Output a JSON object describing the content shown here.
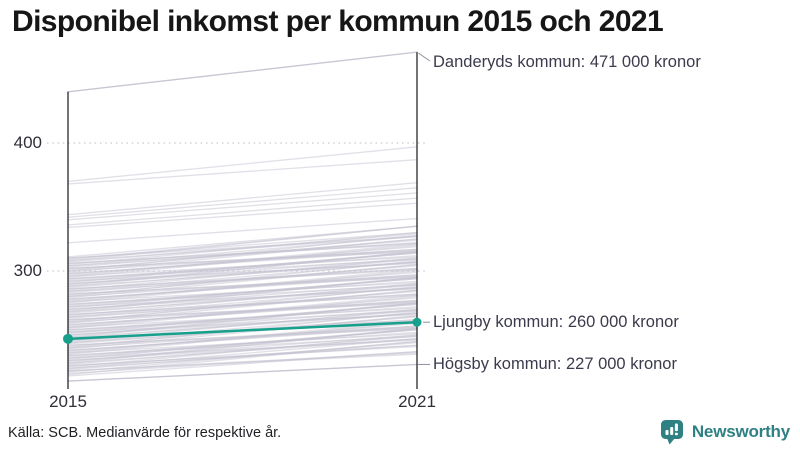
{
  "header": {
    "title": "Disponibel inkomst per kommun 2015 och 2021"
  },
  "footer": {
    "source_note": "Källa: SCB. Medianvärde för respektive år.",
    "brand": "Newsworthy"
  },
  "colors": {
    "accent_teal": "#17a08c",
    "line_gray": "#c5c3d1",
    "logo_teal": "#2e8083",
    "annotation_text": "#3b3b4d"
  },
  "chart_data": {
    "type": "line",
    "subtype": "slope-chart",
    "title": "Disponibel inkomst per kommun 2015 och 2021",
    "x_categories": [
      "2015",
      "2021"
    ],
    "y_ticks": [
      {
        "value": 400,
        "label": "400"
      },
      {
        "value": 300,
        "label": "300"
      }
    ],
    "ylim": [
      210,
      480
    ],
    "grid": "dotted horizontal at ticks",
    "legend": "none",
    "annotated": [
      {
        "name": "Danderyds kommun",
        "label": "Danderyds kommun: 471 000 kronor",
        "values": [
          440,
          471
        ],
        "highlight": false
      },
      {
        "name": "Ljungby kommun",
        "label": "Ljungby kommun: 260 000 kronor",
        "values": [
          247,
          260
        ],
        "highlight": true
      },
      {
        "name": "Högsby kommun",
        "label": "Högsby kommun: 227 000 kronor",
        "values": [
          214,
          227
        ],
        "highlight": false
      }
    ],
    "background_lines": [
      [
        370,
        397
      ],
      [
        368,
        387
      ],
      [
        344,
        369
      ],
      [
        342,
        365
      ],
      [
        340,
        361
      ],
      [
        336,
        357
      ],
      [
        334,
        353
      ],
      [
        322,
        341
      ],
      [
        311,
        335
      ],
      [
        310,
        327
      ],
      [
        309,
        335
      ],
      [
        308,
        327
      ],
      [
        307,
        329
      ],
      [
        306,
        321
      ],
      [
        305,
        330
      ],
      [
        304,
        322
      ],
      [
        303,
        324
      ],
      [
        302,
        316
      ],
      [
        301,
        325
      ],
      [
        300,
        317
      ],
      [
        299,
        325
      ],
      [
        298,
        317
      ],
      [
        297,
        319
      ],
      [
        296,
        311
      ],
      [
        295,
        320
      ],
      [
        294,
        312
      ],
      [
        293,
        314
      ],
      [
        292,
        306
      ],
      [
        291,
        315
      ],
      [
        290,
        307
      ],
      [
        289,
        315
      ],
      [
        288,
        307
      ],
      [
        287,
        309
      ],
      [
        286,
        301
      ],
      [
        285,
        310
      ],
      [
        284,
        302
      ],
      [
        283,
        304
      ],
      [
        282,
        296
      ],
      [
        281,
        305
      ],
      [
        280,
        297
      ],
      [
        279,
        305
      ],
      [
        278,
        297
      ],
      [
        277,
        299
      ],
      [
        276,
        291
      ],
      [
        275,
        300
      ],
      [
        274,
        292
      ],
      [
        273,
        294
      ],
      [
        272,
        286
      ],
      [
        271,
        295
      ],
      [
        270,
        287
      ],
      [
        269,
        295
      ],
      [
        268,
        287
      ],
      [
        267,
        289
      ],
      [
        266,
        281
      ],
      [
        265,
        290
      ],
      [
        264,
        282
      ],
      [
        263,
        284
      ],
      [
        262,
        276
      ],
      [
        261,
        285
      ],
      [
        260,
        277
      ],
      [
        259,
        285
      ],
      [
        258,
        277
      ],
      [
        257,
        279
      ],
      [
        256,
        271
      ],
      [
        255,
        280
      ],
      [
        254,
        272
      ],
      [
        253,
        274
      ],
      [
        252,
        266
      ],
      [
        251,
        275
      ],
      [
        250,
        267
      ],
      [
        249,
        275
      ],
      [
        248,
        267
      ],
      [
        247,
        269
      ],
      [
        246,
        261
      ],
      [
        245,
        270
      ],
      [
        244,
        262
      ],
      [
        243,
        264
      ],
      [
        242,
        256
      ],
      [
        241,
        265
      ],
      [
        240,
        257
      ],
      [
        239,
        265
      ],
      [
        238,
        257
      ],
      [
        237,
        259
      ],
      [
        236,
        251
      ],
      [
        235,
        260
      ],
      [
        234,
        252
      ],
      [
        233,
        254
      ],
      [
        232,
        246
      ],
      [
        231,
        255
      ],
      [
        230,
        247
      ],
      [
        229,
        255
      ],
      [
        228,
        247
      ],
      [
        227,
        249
      ],
      [
        226,
        241
      ],
      [
        225,
        250
      ],
      [
        224,
        242
      ],
      [
        223,
        244
      ],
      [
        222,
        236
      ],
      [
        221,
        245
      ],
      [
        220,
        237
      ],
      [
        219,
        245
      ],
      [
        218,
        237
      ],
      [
        310,
        330
      ],
      [
        308,
        335
      ],
      [
        306,
        322
      ],
      [
        304,
        327
      ],
      [
        302,
        315
      ],
      [
        300,
        328
      ],
      [
        298,
        316
      ],
      [
        296,
        321
      ],
      [
        294,
        309
      ],
      [
        292,
        314
      ],
      [
        290,
        310
      ],
      [
        288,
        315
      ],
      [
        286,
        302
      ],
      [
        284,
        307
      ],
      [
        282,
        295
      ],
      [
        280,
        308
      ],
      [
        278,
        296
      ],
      [
        276,
        301
      ],
      [
        274,
        289
      ],
      [
        272,
        294
      ],
      [
        270,
        290
      ],
      [
        268,
        295
      ],
      [
        266,
        282
      ],
      [
        264,
        287
      ],
      [
        262,
        275
      ],
      [
        260,
        288
      ],
      [
        258,
        276
      ],
      [
        256,
        281
      ],
      [
        254,
        269
      ],
      [
        252,
        274
      ],
      [
        250,
        270
      ],
      [
        248,
        275
      ],
      [
        246,
        262
      ],
      [
        244,
        267
      ],
      [
        242,
        255
      ],
      [
        240,
        268
      ],
      [
        238,
        256
      ],
      [
        236,
        261
      ],
      [
        234,
        249
      ],
      [
        232,
        254
      ],
      [
        230,
        250
      ],
      [
        228,
        255
      ],
      [
        226,
        242
      ],
      [
        224,
        247
      ],
      [
        222,
        235
      ]
    ]
  }
}
